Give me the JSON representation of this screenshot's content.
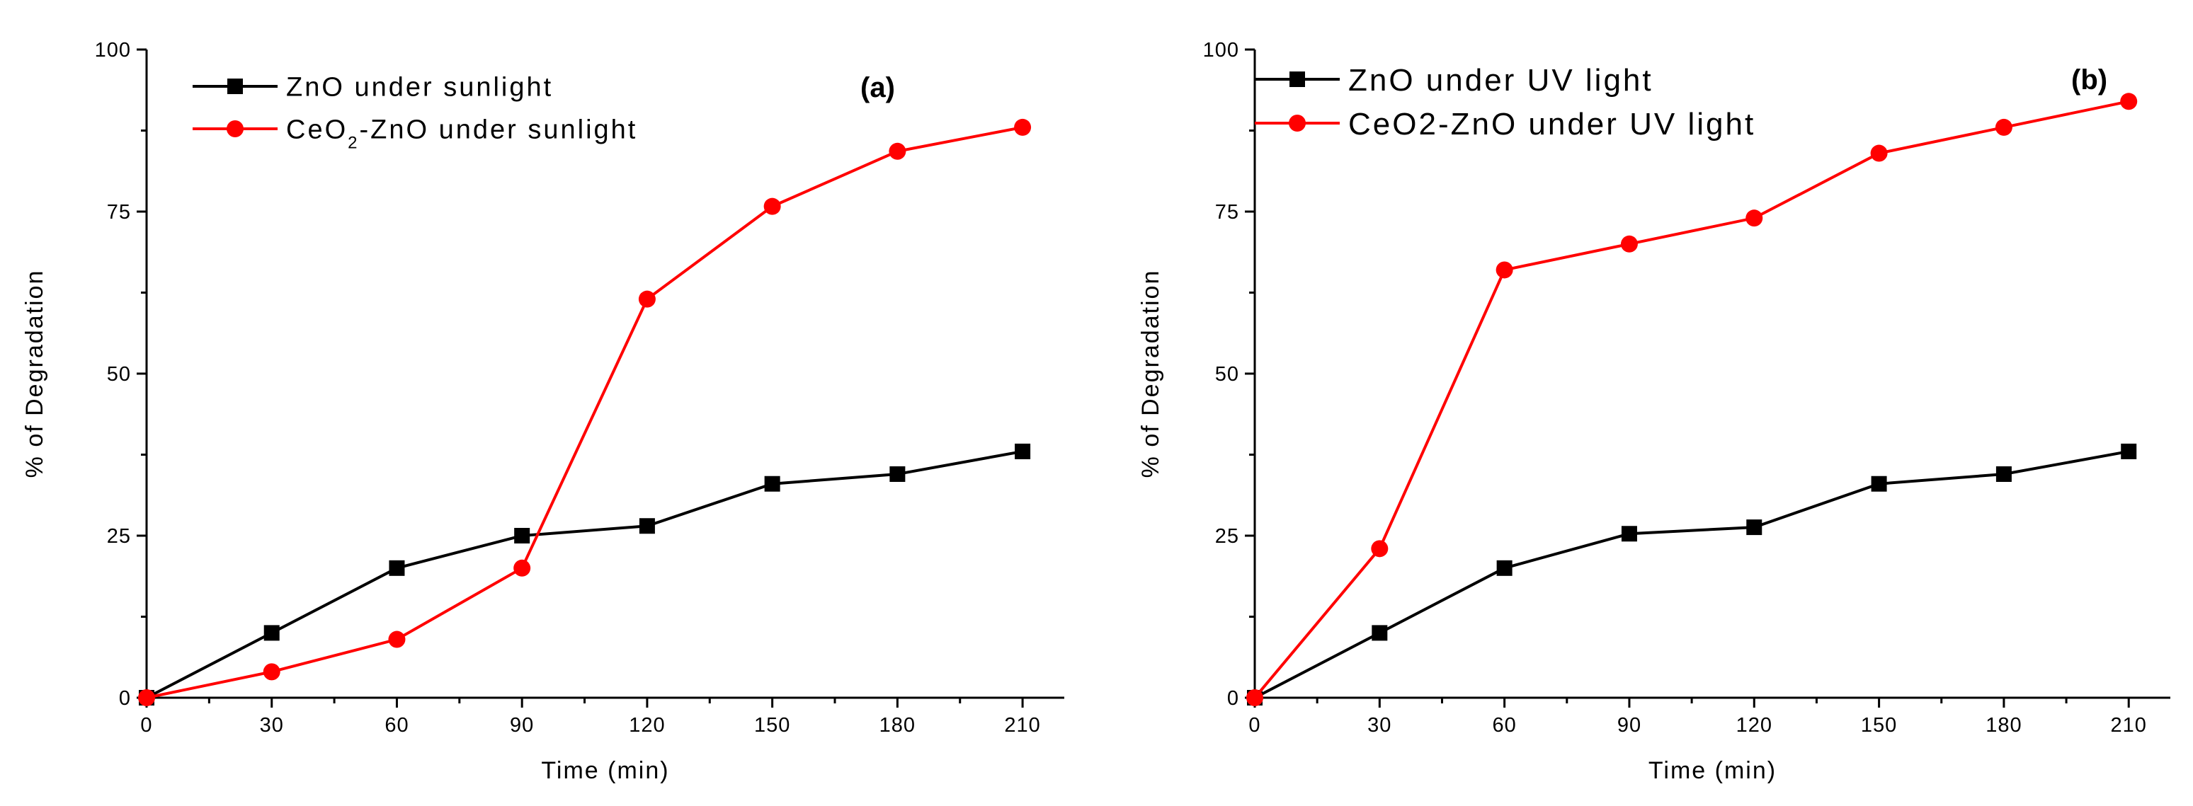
{
  "chart_data": [
    {
      "type": "line",
      "panel_label": "(a)",
      "title": "",
      "xlabel": "Time (min)",
      "ylabel": "% of Degradation",
      "xlim": [
        0,
        220
      ],
      "ylim": [
        0,
        100
      ],
      "x_ticks": [
        0,
        30,
        60,
        90,
        120,
        150,
        180,
        210
      ],
      "y_ticks": [
        0,
        25,
        50,
        75,
        100
      ],
      "grid": false,
      "legend_position": "top-left",
      "x": [
        0,
        30,
        60,
        90,
        120,
        150,
        180,
        210
      ],
      "series": [
        {
          "name": "ZnO under sunlight",
          "legend_parts": [
            "ZnO under sunlight"
          ],
          "color": "#000000",
          "marker": "square",
          "values": [
            0,
            10,
            20,
            25,
            26.5,
            33,
            34.5,
            38
          ]
        },
        {
          "name": "CeO2-ZnO under sunlight",
          "legend_parts": [
            "CeO",
            "2",
            "-ZnO under sunlight"
          ],
          "color": "#ff0000",
          "marker": "circle",
          "values": [
            0,
            4,
            9,
            20,
            61.5,
            75.8,
            84.3,
            88
          ]
        }
      ]
    },
    {
      "type": "line",
      "panel_label": "(b)",
      "title": "",
      "xlabel": "Time (min)",
      "ylabel": "% of Degradation",
      "xlim": [
        0,
        220
      ],
      "ylim": [
        0,
        100
      ],
      "x_ticks": [
        0,
        30,
        60,
        90,
        120,
        150,
        180,
        210
      ],
      "y_ticks": [
        0,
        25,
        50,
        75,
        100
      ],
      "grid": false,
      "legend_position": "top-left",
      "x": [
        0,
        30,
        60,
        90,
        120,
        150,
        180,
        210
      ],
      "series": [
        {
          "name": "ZnO under UV light",
          "legend_parts": [
            "ZnO under UV light"
          ],
          "color": "#000000",
          "marker": "square",
          "values": [
            0,
            10,
            20,
            25.3,
            26.3,
            33,
            34.5,
            38
          ]
        },
        {
          "name": "CeO2-ZnO under UV light",
          "legend_parts": [
            "CeO2-ZnO under UV light"
          ],
          "color": "#ff0000",
          "marker": "circle",
          "values": [
            0,
            23,
            66,
            70,
            74,
            84,
            88,
            92
          ]
        }
      ]
    }
  ]
}
